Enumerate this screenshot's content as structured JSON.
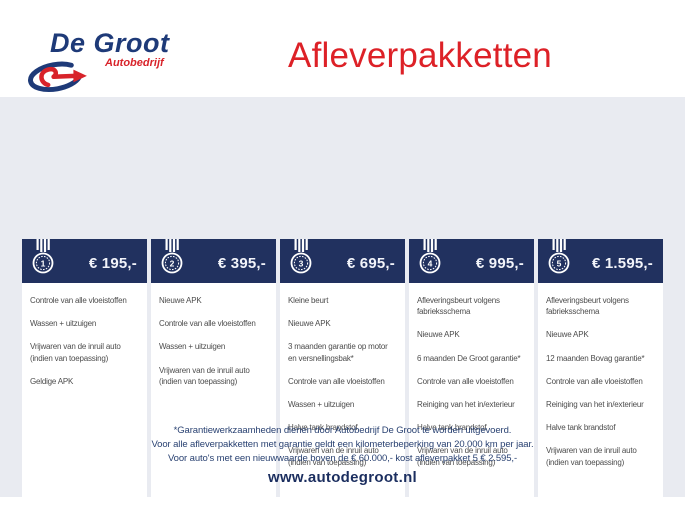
{
  "brand": {
    "name": "De Groot",
    "subtitle": "Autobedrijf"
  },
  "page_title": "Afleverpakketten",
  "packages": [
    {
      "rank": "1",
      "price": "€ 195,-",
      "items": [
        "Controle van alle vloeistoffen",
        "Wassen + uitzuigen",
        "Vrijwaren van de inruil auto (indien van toepassing)",
        "Geldige APK"
      ]
    },
    {
      "rank": "2",
      "price": "€ 395,-",
      "items": [
        "Nieuwe APK",
        "Controle van alle vloeistoffen",
        "Wassen + uitzuigen",
        "Vrijwaren van de inruil auto (indien van toepassing)"
      ]
    },
    {
      "rank": "3",
      "price": "€ 695,-",
      "items": [
        "Kleine beurt",
        "Nieuwe APK",
        "3 maanden garantie op motor en versnellingsbak*",
        "Controle van alle vloeistoffen",
        "Wassen + uitzuigen",
        "Halve tank brandstof",
        "Vrijwaren van de inruil auto (indien van toepassing)"
      ]
    },
    {
      "rank": "4",
      "price": "€ 995,-",
      "items": [
        "Afleveringsbeurt volgens fabrieksschema",
        "Nieuwe APK",
        "6 maanden De Groot garantie*",
        "Controle van alle vloeistoffen",
        "Reiniging van het in/exterieur",
        "Halve tank brandstof",
        "Vrijwaren van de inruil auto (indien van toepassing)"
      ]
    },
    {
      "rank": "5",
      "price": "€ 1.595,-",
      "items": [
        "Afleveringsbeurt volgens fabrieksschema",
        "Nieuwe APK",
        "12 maanden Bovag garantie*",
        "Controle van alle vloeistoffen",
        "Reiniging van het in/exterieur",
        "Halve tank brandstof",
        "Vrijwaren van de inruil auto (indien van toepassing)"
      ]
    }
  ],
  "footnotes": [
    "*Garantiewerkzaamheden dienen door Autobedrijf De Groot te worden uitgevoerd.",
    "Voor alle afleverpakketten met garantie geldt een kilometerbeperking van 20.000 km per jaar.",
    "Voor auto's met een nieuwwaarde boven de € 60.000,- kost afleverpakket 5 € 2.595,-"
  ],
  "website": "www.autodegroot.nl",
  "colors": {
    "header_navy": "#21315f",
    "accent_red": "#dd2127",
    "logo_blue": "#1e3a78",
    "background_gray": "#e9ebf1",
    "footnote_navy": "#2a4272"
  },
  "icons": {
    "medal": "medal-icon",
    "logo_swoosh": "logo-swoosh-icon"
  }
}
